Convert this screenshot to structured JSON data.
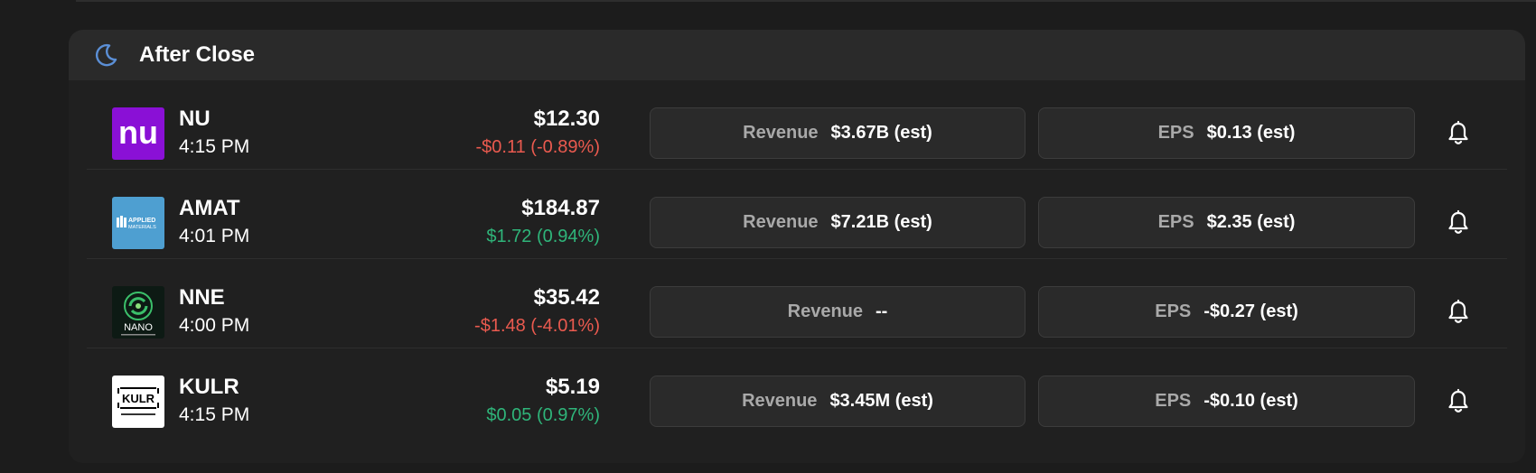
{
  "section": {
    "title": "After Close"
  },
  "labels": {
    "revenue": "Revenue",
    "eps": "EPS"
  },
  "rows": [
    {
      "ticker": "NU",
      "time": "4:15 PM",
      "price": "$12.30",
      "change": "-$0.11 (-0.89%)",
      "direction": "neg",
      "revenue": "$3.67B (est)",
      "eps": "$0.13 (est)",
      "logo": "nu"
    },
    {
      "ticker": "AMAT",
      "time": "4:01 PM",
      "price": "$184.87",
      "change": "$1.72 (0.94%)",
      "direction": "pos",
      "revenue": "$7.21B (est)",
      "eps": "$2.35 (est)",
      "logo": "applied-materials"
    },
    {
      "ticker": "NNE",
      "time": "4:00 PM",
      "price": "$35.42",
      "change": "-$1.48 (-4.01%)",
      "direction": "neg",
      "revenue": "--",
      "eps": "-$0.27 (est)",
      "logo": "nano-nuclear"
    },
    {
      "ticker": "KULR",
      "time": "4:15 PM",
      "price": "$5.19",
      "change": "$0.05 (0.97%)",
      "direction": "pos",
      "revenue": "$3.45M (est)",
      "eps": "-$0.10 (est)",
      "logo": "kulr"
    }
  ],
  "logo_text": {
    "nu": "nu",
    "amat": "APPLIED MATERIALS",
    "nne": "NANO",
    "kulr": "KULR"
  },
  "colors": {
    "negative": "#ea5a4f",
    "positive": "#2fb57a",
    "moon_icon": "#5b8fd6",
    "nu_logo_bg": "#8a10d6",
    "amat_logo_bg": "#4e9fd1"
  },
  "icons": {
    "header": "moon-icon",
    "row_action": "bell-icon"
  }
}
